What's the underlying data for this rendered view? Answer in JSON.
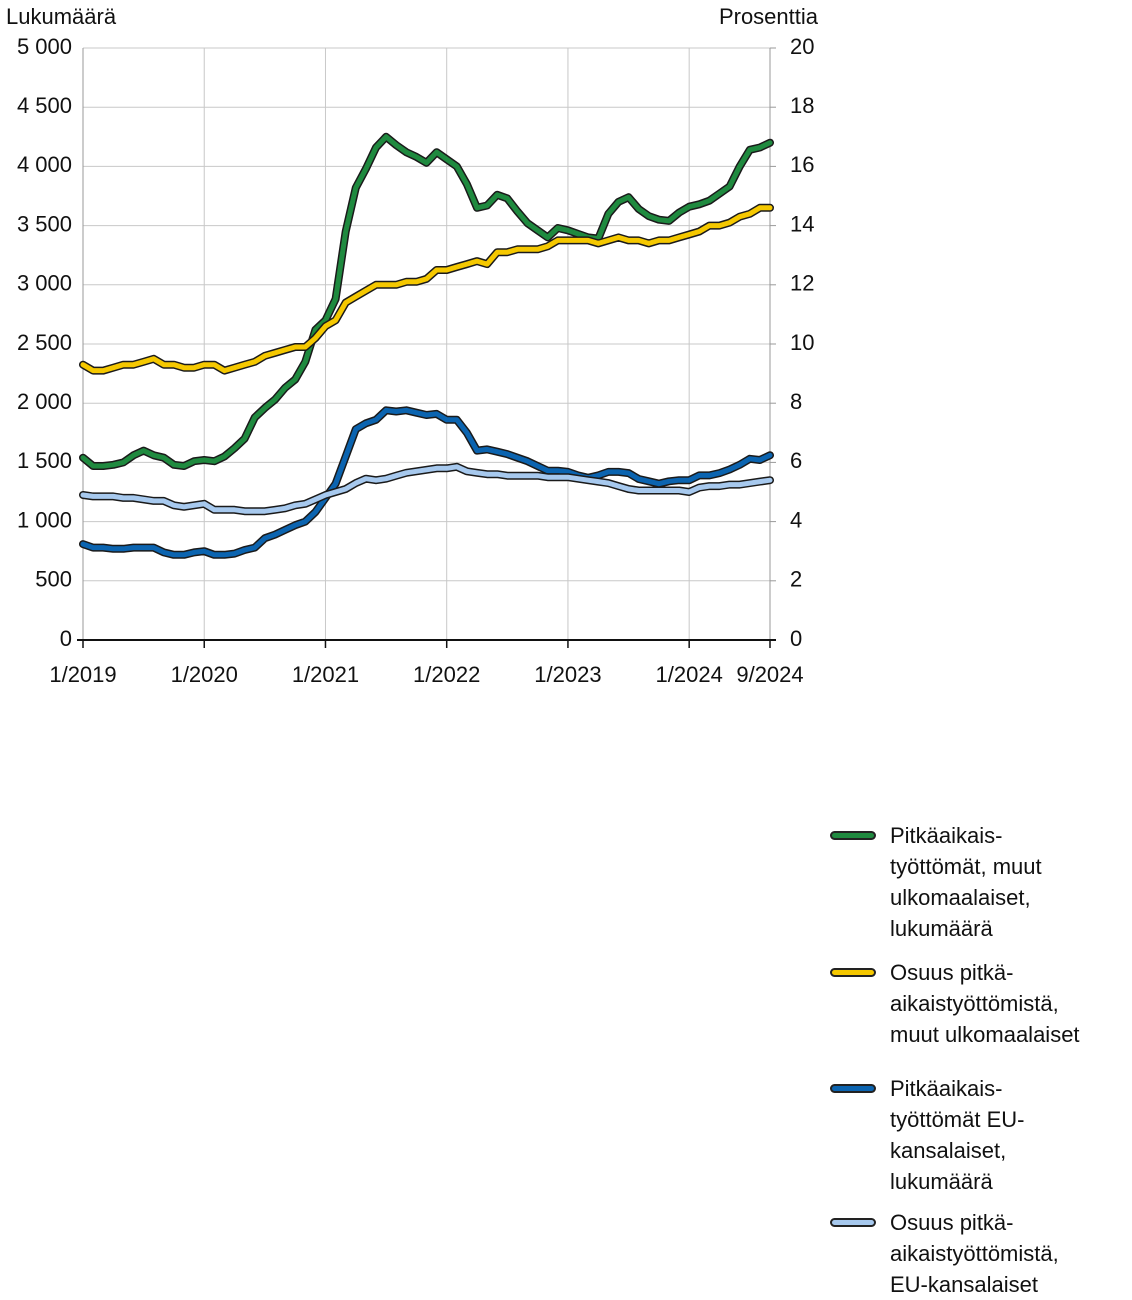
{
  "chart_data": {
    "type": "line",
    "y_label": "Lukumäärä",
    "y2_label": "Prosenttia",
    "categories": [
      "1/2019",
      null,
      null,
      null,
      null,
      null,
      null,
      null,
      null,
      null,
      null,
      null,
      "1/2020",
      null,
      null,
      null,
      null,
      null,
      null,
      null,
      null,
      null,
      null,
      null,
      "1/2021",
      null,
      null,
      null,
      null,
      null,
      null,
      null,
      null,
      null,
      null,
      null,
      "1/2022",
      null,
      null,
      null,
      null,
      null,
      null,
      null,
      null,
      null,
      null,
      null,
      "1/2023",
      null,
      null,
      null,
      null,
      null,
      null,
      null,
      null,
      null,
      null,
      null,
      "1/2024",
      null,
      null,
      null,
      null,
      null,
      null,
      null,
      "9/2024"
    ],
    "ylim": [
      0,
      5000
    ],
    "yticks": [
      0,
      500,
      {
        "value": 1000,
        "label": "1 000"
      },
      {
        "value": 1500,
        "label": "1 500"
      },
      {
        "value": 2000,
        "label": "2 000"
      },
      {
        "value": 2500,
        "label": "2 500"
      },
      {
        "value": 3000,
        "label": "3 000"
      },
      {
        "value": 3500,
        "label": "3 500"
      },
      {
        "value": 4000,
        "label": "4 000"
      },
      {
        "value": 4500,
        "label": "4 500"
      },
      {
        "value": 5000,
        "label": "5 000"
      }
    ],
    "y2lim": [
      0,
      20
    ],
    "y2ticks": [
      0,
      2,
      4,
      6,
      8,
      10,
      12,
      14,
      16,
      18,
      20
    ],
    "grid": true,
    "series": [
      {
        "name": "Pitkäaikais-\ntyöttömät, muut\nulkomaalaiset,\nlukumäärä",
        "color": "#1f8a3f",
        "values": [
          1540,
          1470,
          1470,
          1480,
          1500,
          1560,
          1600,
          1560,
          1540,
          1480,
          1470,
          1510,
          1520,
          1510,
          1550,
          1620,
          1700,
          1880,
          1960,
          2030,
          2130,
          2200,
          2350,
          2620,
          2700,
          2880,
          3450,
          3820,
          3980,
          4160,
          4250,
          4180,
          4120,
          4080,
          4030,
          4120,
          4060,
          4000,
          3850,
          3650,
          3670,
          3760,
          3730,
          3620,
          3520,
          3460,
          3400,
          3480,
          3460,
          3430,
          3400,
          3390,
          3600,
          3700,
          3740,
          3640,
          3580,
          3550,
          3540,
          3610,
          3660,
          3680,
          3710,
          3770,
          3830,
          4000,
          4140,
          4160,
          4200
        ]
      },
      {
        "name": "Osuus pitkä-\naikaistyöttömistä,\nmuut ulkomaalaiset",
        "color": "#f5c800",
        "axis": "y2",
        "values": [
          9.3,
          9.1,
          9.1,
          9.2,
          9.3,
          9.3,
          9.4,
          9.5,
          9.3,
          9.3,
          9.2,
          9.2,
          9.3,
          9.3,
          9.1,
          9.2,
          9.3,
          9.4,
          9.6,
          9.7,
          9.8,
          9.9,
          9.9,
          10.2,
          10.6,
          10.8,
          11.4,
          11.6,
          11.8,
          12.0,
          12.0,
          12.0,
          12.1,
          12.1,
          12.2,
          12.5,
          12.5,
          12.6,
          12.7,
          12.8,
          12.7,
          13.1,
          13.1,
          13.2,
          13.2,
          13.2,
          13.3,
          13.5,
          13.5,
          13.5,
          13.5,
          13.4,
          13.5,
          13.6,
          13.5,
          13.5,
          13.4,
          13.5,
          13.5,
          13.6,
          13.7,
          13.8,
          14.0,
          14.0,
          14.1,
          14.3,
          14.4,
          14.6,
          14.6
        ]
      },
      {
        "name": "Pitkäaikais-\ntyöttömät EU-\nkansalaiset,\nlukumäärä",
        "color": "#0b64b0",
        "values": [
          810,
          780,
          780,
          770,
          770,
          780,
          780,
          780,
          740,
          720,
          720,
          740,
          750,
          720,
          720,
          730,
          760,
          780,
          860,
          890,
          930,
          970,
          1000,
          1080,
          1200,
          1320,
          1550,
          1780,
          1830,
          1860,
          1940,
          1930,
          1940,
          1920,
          1900,
          1910,
          1860,
          1860,
          1750,
          1600,
          1610,
          1590,
          1570,
          1540,
          1510,
          1470,
          1430,
          1430,
          1420,
          1390,
          1370,
          1390,
          1420,
          1420,
          1410,
          1360,
          1340,
          1320,
          1340,
          1350,
          1350,
          1390,
          1390,
          1410,
          1440,
          1480,
          1530,
          1520,
          1560
        ]
      },
      {
        "name": "Osuus pitkä-\naikaistyöttömistä,\nEU-kansalaiset",
        "color": "#a7c9ee",
        "axis": "y2",
        "values": [
          4.9,
          4.85,
          4.85,
          4.85,
          4.8,
          4.8,
          4.75,
          4.7,
          4.7,
          4.55,
          4.5,
          4.55,
          4.6,
          4.4,
          4.4,
          4.4,
          4.35,
          4.35,
          4.35,
          4.4,
          4.45,
          4.55,
          4.6,
          4.75,
          4.9,
          5.0,
          5.1,
          5.3,
          5.45,
          5.4,
          5.45,
          5.55,
          5.65,
          5.7,
          5.75,
          5.8,
          5.8,
          5.85,
          5.7,
          5.65,
          5.6,
          5.6,
          5.55,
          5.55,
          5.55,
          5.55,
          5.5,
          5.5,
          5.5,
          5.45,
          5.4,
          5.35,
          5.3,
          5.2,
          5.1,
          5.05,
          5.05,
          5.05,
          5.05,
          5.05,
          5.0,
          5.15,
          5.2,
          5.2,
          5.25,
          5.25,
          5.3,
          5.35,
          5.4
        ]
      }
    ]
  }
}
